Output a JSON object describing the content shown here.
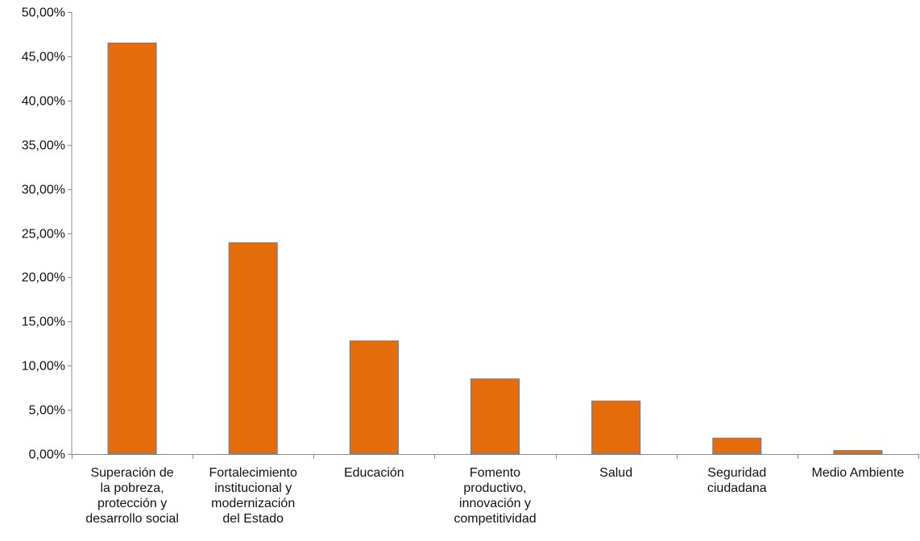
{
  "chart_data": {
    "type": "bar",
    "title": "",
    "xlabel": "",
    "ylabel": "",
    "ylim": [
      0,
      50
    ],
    "yticks": [
      "0,00%",
      "5,00%",
      "10,00%",
      "15,00%",
      "20,00%",
      "25,00%",
      "30,00%",
      "35,00%",
      "40,00%",
      "45,00%",
      "50,00%"
    ],
    "ytick_values": [
      0,
      5,
      10,
      15,
      20,
      25,
      30,
      35,
      40,
      45,
      50
    ],
    "grid": false,
    "legend": "none",
    "bar_color": "#E46C0A",
    "bar_edge_color": "#4F81BD",
    "categories": [
      [
        "Superación de",
        "la pobreza,",
        "protección y",
        "desarrollo social"
      ],
      [
        "Fortalecimiento",
        "institucional y",
        "modernización",
        "del Estado"
      ],
      [
        "Educación"
      ],
      [
        "Fomento",
        "productivo,",
        "innovación y",
        "competitividad"
      ],
      [
        "Salud"
      ],
      [
        "Seguridad",
        "ciudadana"
      ],
      [
        "Medio Ambiente"
      ]
    ],
    "values": [
      46.5,
      23.9,
      12.8,
      8.5,
      6.0,
      1.8,
      0.4
    ]
  }
}
